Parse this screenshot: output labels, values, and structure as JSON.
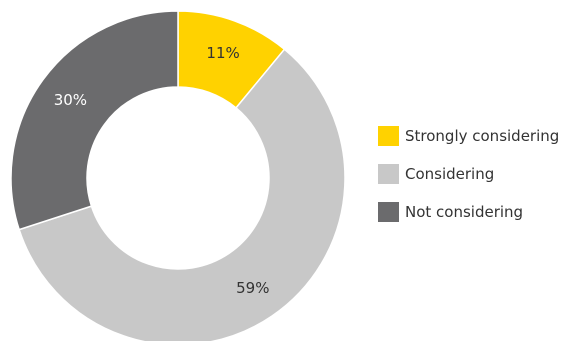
{
  "chart_data": {
    "type": "pie",
    "categories": [
      "Strongly considering",
      "Considering",
      "Not considering"
    ],
    "values": [
      11,
      59,
      30
    ],
    "labels": [
      "11%",
      "59%",
      "30%"
    ],
    "colors": [
      "#ffd200",
      "#c8c8c8",
      "#6b6b6d"
    ],
    "label_colors": [
      "#333333",
      "#333333",
      "#ffffff"
    ],
    "donut": true,
    "start": "12 o'clock",
    "direction": "clockwise",
    "legend": "right"
  }
}
